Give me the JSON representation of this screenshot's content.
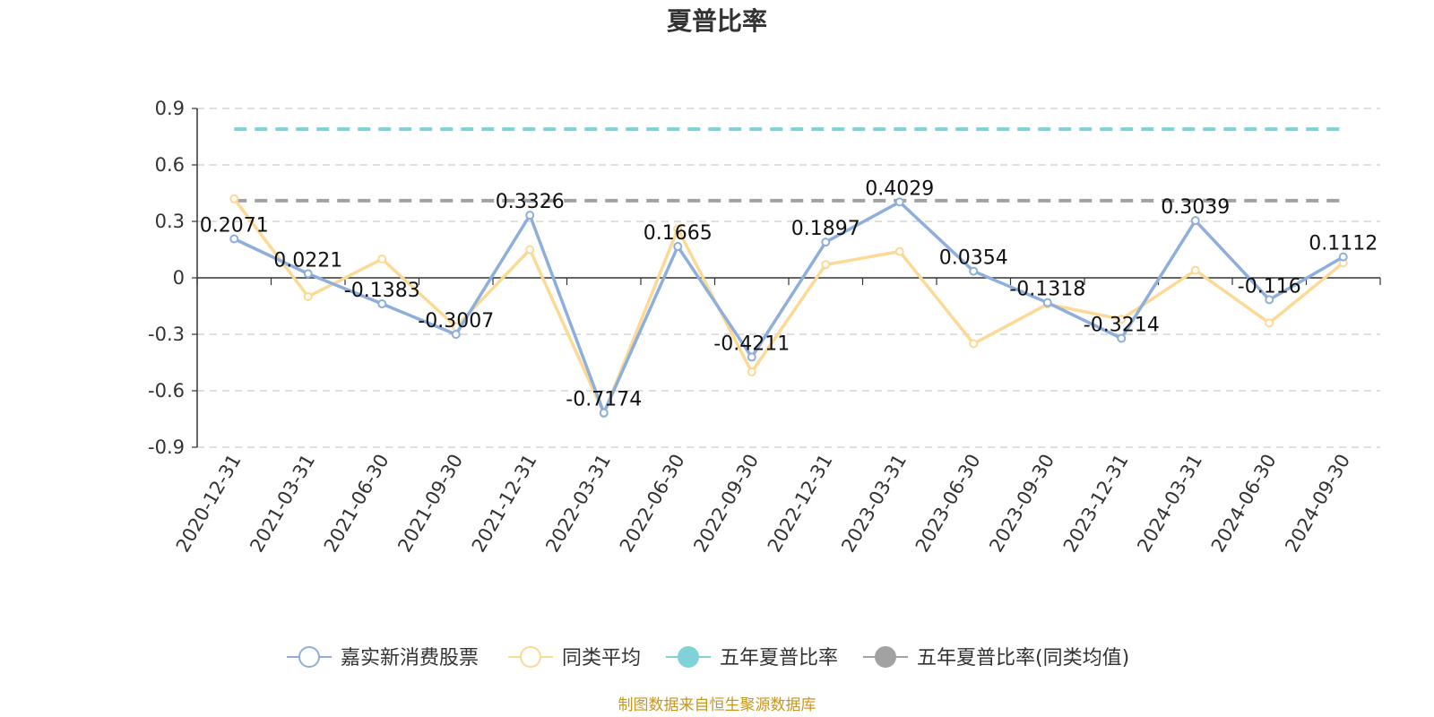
{
  "chart_data": {
    "type": "line",
    "title": "夏普比率",
    "categories": [
      "2020-12-31",
      "2021-03-31",
      "2021-06-30",
      "2021-09-30",
      "2021-12-31",
      "2022-03-31",
      "2022-06-30",
      "2022-09-30",
      "2022-12-31",
      "2023-03-31",
      "2023-06-30",
      "2023-09-30",
      "2023-12-31",
      "2024-03-31",
      "2024-06-30",
      "2024-09-30"
    ],
    "y_ticks": [
      "0.9",
      "0.6",
      "0.3",
      "0",
      "-0.3",
      "-0.6",
      "-0.9"
    ],
    "ylim": [
      -0.9,
      0.9
    ],
    "grid": true,
    "legend_position": "bottom",
    "series": [
      {
        "name": "嘉实新消费股票",
        "color": "#8eaedb",
        "values": [
          0.2071,
          0.0221,
          -0.1383,
          -0.3007,
          0.3326,
          -0.7174,
          0.1665,
          -0.4211,
          0.1897,
          0.4029,
          0.0354,
          -0.1318,
          -0.3214,
          0.3039,
          -0.116,
          0.1112
        ],
        "labels": [
          "0.2071",
          "0.0221",
          "-0.1383",
          "-0.3007",
          "0.3326",
          "-0.7174",
          "0.1665",
          "-0.4211",
          "0.1897",
          "0.4029",
          "0.0354",
          "-0.1318",
          "-0.3214",
          "0.3039",
          "-0.116",
          "0.1112"
        ]
      },
      {
        "name": "同类平均",
        "color": "#fcd995",
        "values": [
          0.42,
          -0.1,
          0.1,
          -0.26,
          0.15,
          -0.72,
          0.26,
          -0.5,
          0.07,
          0.14,
          -0.35,
          -0.14,
          -0.22,
          0.04,
          -0.24,
          0.08
        ]
      },
      {
        "name": "五年夏普比率",
        "color": "#7fd3d8",
        "constant": 0.79,
        "dashed": true
      },
      {
        "name": "五年夏普比率(同类均值)",
        "color": "#a2a2a2",
        "constant": 0.41,
        "dashed": true
      }
    ]
  },
  "source_note": "制图数据来自恒生聚源数据库"
}
